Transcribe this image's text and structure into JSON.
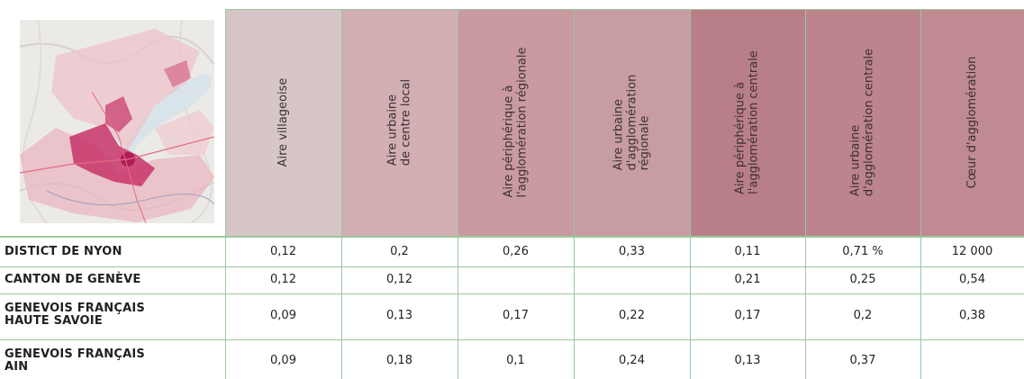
{
  "colors": {
    "header_1": "#d7c6c8",
    "header_2": "#d1afb3",
    "header_3": "#c99aa0",
    "header_4": "#c79da2",
    "header_5": "#b97f88",
    "header_6": "#bc848c",
    "header_7": "#bf8a92",
    "rule": "#9bc79b",
    "map_highlight": "#c8346a"
  },
  "map": {
    "icon": "regional-map-thumbnail"
  },
  "columns": [
    {
      "label": "Aire villageoise"
    },
    {
      "label": "Aire urbaine\nde centre local"
    },
    {
      "label": "Aire périphérique à\nl'agglomération régionale"
    },
    {
      "label": "Aire urbaine\nd'agglomération\nrégionale"
    },
    {
      "label": "Aire périphérique à\nl'agglomération centrale"
    },
    {
      "label": "Aire urbaine\nd'agglomération centrale"
    },
    {
      "label": "Cœur d'agglomération"
    }
  ],
  "rows": [
    {
      "label": "DISTICT DE NYON",
      "values": [
        "0,12",
        "0,2",
        "0,26",
        "0,33",
        "0,11",
        "0,71 %",
        "12 000"
      ]
    },
    {
      "label": "CANTON DE GENÈVE",
      "values": [
        "0,12",
        "0,12",
        "",
        "",
        "0,21",
        "0,25",
        "0,54"
      ]
    },
    {
      "label": "GENEVOIS FRANÇAIS\nHAUTE SAVOIE",
      "values": [
        "0,09",
        "0,13",
        "0,17",
        "0,22",
        "0,17",
        "0,2",
        "0,38"
      ]
    },
    {
      "label": "GENEVOIS FRANÇAIS\nAIN",
      "values": [
        "0,09",
        "0,18",
        "0,1",
        "0,24",
        "0,13",
        "0,37",
        ""
      ]
    }
  ]
}
